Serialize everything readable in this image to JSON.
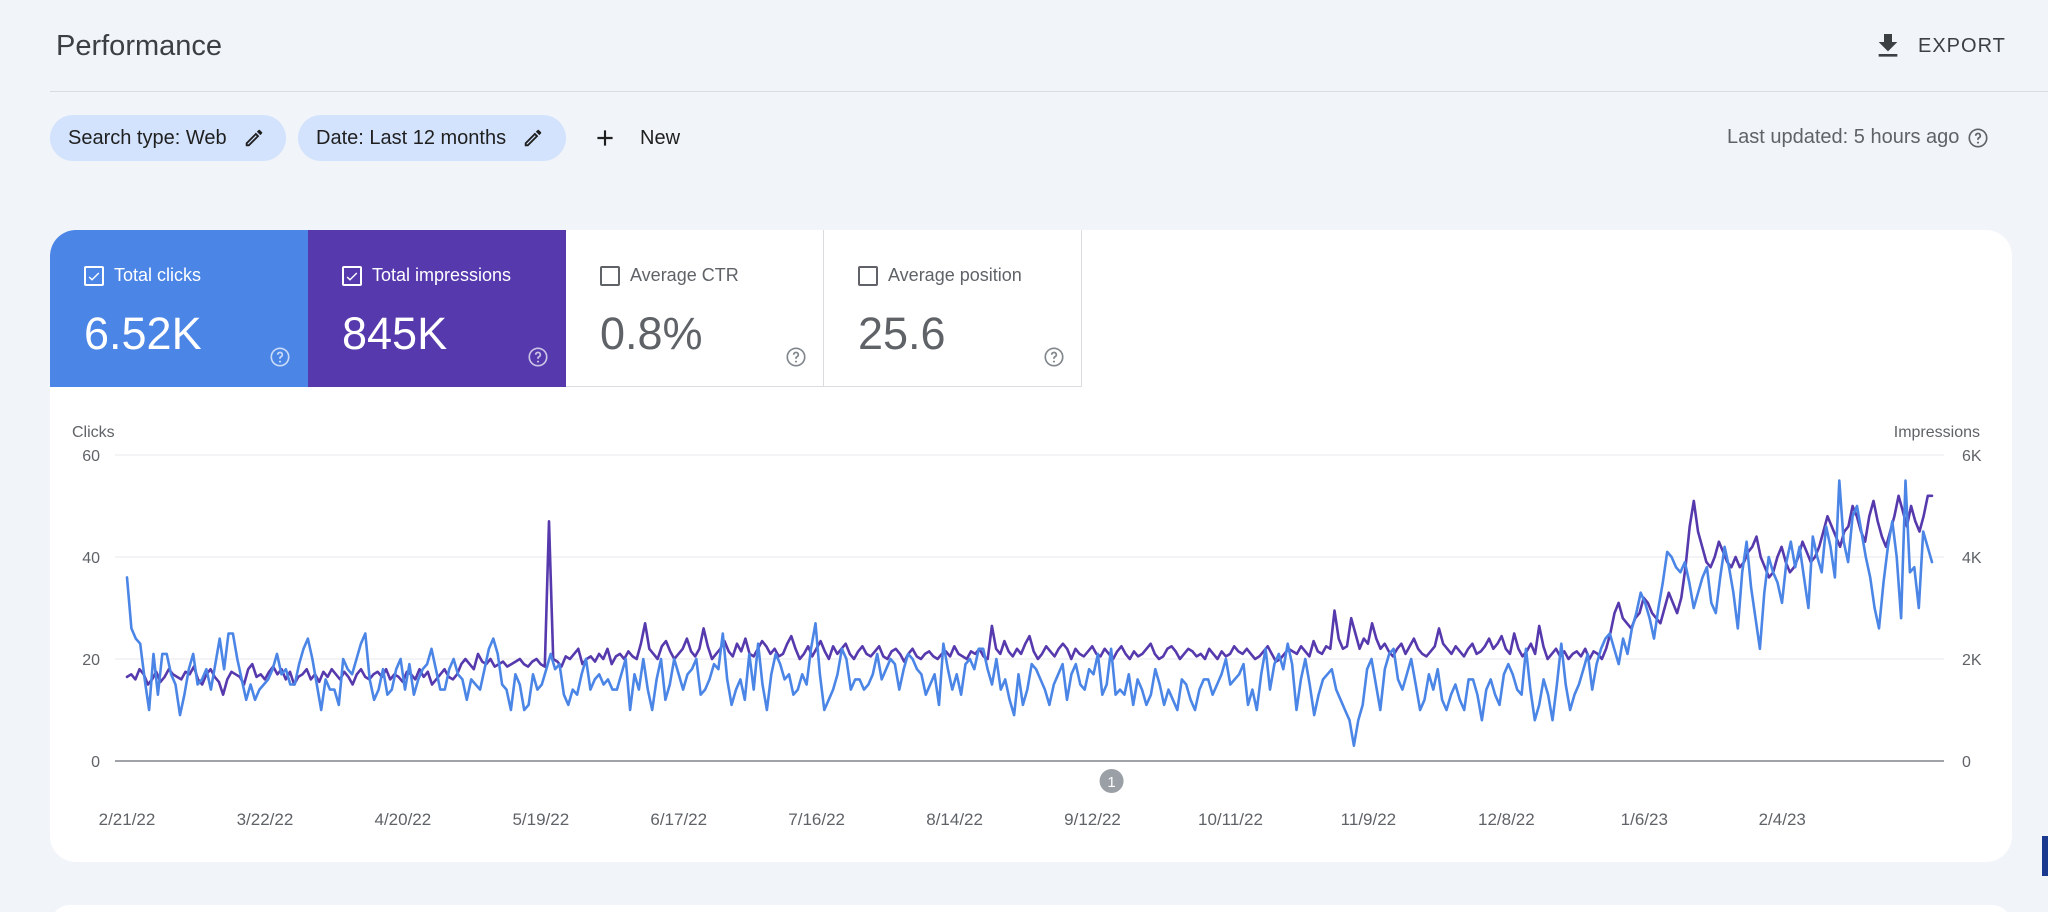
{
  "header": {
    "title": "Performance",
    "export_label": "EXPORT",
    "export_icon": "download-icon"
  },
  "filters": {
    "search_type": "Search type: Web",
    "date": "Date: Last 12 months",
    "new_label": "New",
    "edit_icon": "pencil-icon",
    "add_icon": "plus-icon"
  },
  "status": {
    "last_updated": "Last updated: 5 hours ago",
    "help_icon": "help-circle-icon"
  },
  "metrics": [
    {
      "label": "Total clicks",
      "value": "6.52K",
      "checked": true,
      "color": "#4b85e6"
    },
    {
      "label": "Total impressions",
      "value": "845K",
      "checked": true,
      "color": "#5639ad"
    },
    {
      "label": "Average CTR",
      "value": "0.8%",
      "checked": false,
      "color": "#ffffff"
    },
    {
      "label": "Average position",
      "value": "25.6",
      "checked": false,
      "color": "#ffffff"
    }
  ],
  "chart_data": {
    "type": "line",
    "title": "",
    "ylabel_left": "Clicks",
    "ylabel_right": "Impressions",
    "y_left_ticks": [
      "0",
      "20",
      "40",
      "60"
    ],
    "y_right_ticks": [
      "0",
      "2K",
      "4K",
      "6K"
    ],
    "ylim_left": [
      0,
      60
    ],
    "ylim_right": [
      0,
      6000
    ],
    "grid": true,
    "x_tick_labels": [
      "2/21/22",
      "3/22/22",
      "4/20/22",
      "5/19/22",
      "6/17/22",
      "7/16/22",
      "8/14/22",
      "9/12/22",
      "10/11/22",
      "11/9/22",
      "12/8/22",
      "1/6/23",
      "2/4/23"
    ],
    "x_start": "2022-02-21",
    "annotation": {
      "label": "1",
      "date": "2022-09-16"
    },
    "series": [
      {
        "name": "Clicks",
        "axis": "left",
        "color": "#4b85e6",
        "values": [
          36,
          26,
          24,
          23,
          16,
          10,
          21,
          13,
          21,
          21,
          17,
          15,
          9,
          13,
          18,
          21,
          15,
          16,
          18,
          14,
          19,
          24,
          18,
          25,
          25,
          20,
          16,
          12,
          15,
          12,
          14,
          15,
          16,
          18,
          21,
          17,
          18,
          15,
          15,
          19,
          22,
          24,
          20,
          15,
          10,
          16,
          14,
          14,
          11,
          20,
          18,
          17,
          20,
          23,
          25,
          16,
          12,
          14,
          18,
          13,
          14,
          18,
          20,
          14,
          19,
          13,
          16,
          18,
          19,
          22,
          18,
          14,
          14,
          18,
          20,
          17,
          16,
          12,
          16,
          15,
          14,
          18,
          22,
          24,
          21,
          15,
          14,
          10,
          17,
          15,
          10,
          11,
          17,
          14,
          15,
          18,
          21,
          18,
          19,
          13,
          11,
          14,
          13,
          17,
          20,
          14,
          16,
          17,
          15,
          16,
          14,
          14,
          17,
          20,
          10,
          17,
          14,
          20,
          14,
          10,
          16,
          20,
          12,
          15,
          20,
          17,
          14,
          17,
          18,
          20,
          13,
          14,
          16,
          19,
          18,
          25,
          16,
          11,
          14,
          16,
          12,
          21,
          14,
          23,
          15,
          10,
          17,
          21,
          19,
          16,
          17,
          13,
          14,
          17,
          15,
          22,
          27,
          17,
          10,
          12,
          14,
          17,
          22,
          20,
          14,
          16,
          16,
          14,
          15,
          17,
          21,
          16,
          18,
          20,
          19,
          14,
          18,
          21,
          20,
          18,
          17,
          13,
          15,
          17,
          11,
          23,
          18,
          14,
          17,
          13,
          19,
          20,
          18,
          22,
          22,
          18,
          15,
          20,
          14,
          16,
          12,
          9,
          17,
          11,
          14,
          19,
          18,
          16,
          14,
          11,
          15,
          17,
          19,
          12,
          17,
          19,
          15,
          14,
          18,
          17,
          21,
          13,
          15,
          22,
          13,
          14,
          13,
          17,
          11,
          16,
          14,
          11,
          13,
          18,
          15,
          11,
          14,
          12,
          10,
          16,
          15,
          12,
          10,
          14,
          16,
          16,
          13,
          15,
          17,
          20,
          15,
          16,
          17,
          19,
          11,
          14,
          10,
          17,
          22,
          14,
          19,
          21,
          18,
          23,
          19,
          10,
          16,
          20,
          15,
          9,
          13,
          16,
          17,
          18,
          14,
          12,
          10,
          8,
          3,
          8,
          11,
          18,
          20,
          15,
          10,
          18,
          21,
          22,
          16,
          14,
          17,
          20,
          15,
          10,
          12,
          17,
          14,
          18,
          12,
          10,
          13,
          15,
          12,
          10,
          16,
          16,
          13,
          8,
          14,
          16,
          13,
          11,
          17,
          19,
          17,
          14,
          13,
          22,
          14,
          8,
          11,
          16,
          13,
          8,
          15,
          23,
          15,
          10,
          13,
          15,
          18,
          21,
          14,
          19,
          22,
          24,
          25,
          22,
          19,
          24,
          21,
          26,
          29,
          33,
          31,
          28,
          24,
          30,
          35,
          41,
          40,
          38,
          37,
          39,
          35,
          30,
          33,
          36,
          38,
          31,
          29,
          36,
          42,
          38,
          33,
          26,
          37,
          43,
          34,
          28,
          22,
          33,
          40,
          37,
          35,
          31,
          39,
          43,
          38,
          42,
          36,
          30,
          44,
          40,
          37,
          46,
          42,
          36,
          55,
          43,
          39,
          48,
          50,
          45,
          40,
          36,
          30,
          26,
          35,
          42,
          47,
          40,
          28,
          55,
          37,
          38,
          30,
          45,
          42,
          39
        ]
      },
      {
        "name": "Impressions",
        "axis": "right",
        "color": "#5639ad",
        "values": [
          1650,
          1700,
          1600,
          1800,
          1700,
          1500,
          1600,
          1750,
          1550,
          1650,
          1800,
          1700,
          1650,
          1600,
          1750,
          1700,
          1850,
          1600,
          1500,
          1700,
          1800,
          1650,
          1550,
          1300,
          1600,
          1750,
          1700,
          1650,
          1500,
          1800,
          1900,
          1650,
          1700,
          1600,
          1750,
          1850,
          1700,
          1800,
          1600,
          1750,
          1500,
          1650,
          1700,
          1800,
          1600,
          1700,
          1550,
          1750,
          1650,
          1800,
          1700,
          1600,
          1750,
          1650,
          1500,
          1700,
          1800,
          1650,
          1600,
          1700,
          1750,
          1650,
          1800,
          1600,
          1700,
          1650,
          1550,
          1750,
          1700,
          1600,
          1800,
          1650,
          1750,
          1500,
          1600,
          1700,
          1800,
          1650,
          1600,
          1700,
          1900,
          2000,
          1900,
          1800,
          2100,
          1950,
          1900,
          2000,
          1850,
          1900,
          1950,
          1850,
          1900,
          1950,
          2000,
          1900,
          1850,
          1950,
          2000,
          1900,
          1850,
          4700,
          2000,
          1950,
          1850,
          2050,
          2000,
          2100,
          2200,
          1900,
          2000,
          2050,
          1950,
          2100,
          2000,
          2200,
          1900,
          2050,
          2100,
          2000,
          2150,
          2050,
          2000,
          2300,
          2700,
          2200,
          2100,
          2000,
          2250,
          2350,
          2150,
          2000,
          2100,
          2200,
          2400,
          2150,
          2050,
          2200,
          2600,
          2250,
          2000,
          2100,
          2200,
          2350,
          2150,
          2050,
          2300,
          2150,
          2400,
          2100,
          2050,
          2200,
          2350,
          2250,
          2100,
          2200,
          2050,
          2100,
          2300,
          2450,
          2200,
          2000,
          2100,
          2250,
          2050,
          2200,
          2350,
          2150,
          2000,
          2250,
          2100,
          2200,
          2300,
          2100,
          2000,
          2150,
          2250,
          2100,
          2050,
          2150,
          2250,
          2050,
          2000,
          2150,
          2200,
          2100,
          1950,
          2100,
          2200,
          2050,
          2000,
          2100,
          2150,
          2050,
          2000,
          2100,
          2150,
          2050,
          2250,
          2100,
          2050,
          2000,
          2150,
          2100,
          2200,
          2050,
          2000,
          2650,
          2200,
          2100,
          2350,
          2150,
          2050,
          2200,
          2100,
          2300,
          2450,
          2150,
          2000,
          2100,
          2250,
          2150,
          2050,
          2200,
          2300,
          2200,
          2000,
          2200,
          2100,
          2050,
          2150,
          2250,
          2100,
          2050,
          2200,
          2100,
          2000,
          2150,
          2250,
          2100,
          2000,
          2150,
          2050,
          2100,
          2200,
          2300,
          2100,
          2000,
          2050,
          2200,
          2250,
          2150,
          2000,
          2100,
          2200,
          2150,
          2050,
          2100,
          2000,
          2200,
          2100,
          2000,
          2150,
          2050,
          2100,
          2250,
          2150,
          2100,
          2200,
          2100,
          2000,
          2050,
          2150,
          2250,
          2100,
          1950,
          2000,
          2100,
          2200,
          2150,
          2100,
          2250,
          2150,
          2050,
          2350,
          2150,
          2100,
          2250,
          2200,
          2950,
          2400,
          2200,
          2250,
          2800,
          2500,
          2200,
          2400,
          2300,
          2700,
          2400,
          2200,
          2300,
          2150,
          2050,
          2200,
          2300,
          2100,
          2250,
          2400,
          2200,
          2100,
          2050,
          2150,
          2250,
          2600,
          2300,
          2200,
          2100,
          2250,
          2150,
          2050,
          2200,
          2300,
          2100,
          2150,
          2250,
          2400,
          2200,
          2300,
          2450,
          2200,
          2100,
          2500,
          2200,
          2050,
          2150,
          2300,
          2100,
          2650,
          2250,
          2000,
          2100,
          2200,
          2050,
          2150,
          2000,
          2100,
          2150,
          2050,
          2200,
          2000,
          2150,
          2100,
          2000,
          2200,
          2500,
          2900,
          3100,
          2800,
          2700,
          2600,
          2800,
          2900,
          3200,
          3100,
          2900,
          2800,
          2700,
          3000,
          3300,
          3100,
          2900,
          3200,
          3800,
          4600,
          5100,
          4500,
          4200,
          3900,
          3800,
          4000,
          4300,
          4100,
          3900,
          3800,
          4000,
          3800,
          3900,
          4100,
          4200,
          4400,
          4000,
          3800,
          3600,
          3700,
          4000,
          4200,
          3900,
          3700,
          3800,
          4000,
          4300,
          4100,
          3900,
          4000,
          4200,
          4500,
          4800,
          4600,
          4400,
          4200,
          4500,
          4600,
          5000,
          4800,
          4500,
          4300,
          4800,
          5100,
          4700,
          4400,
          4200,
          4500,
          4800,
          5200,
          4900,
          4600,
          5000,
          4700,
          4500,
          4800,
          5200,
          5200
        ]
      }
    ]
  }
}
